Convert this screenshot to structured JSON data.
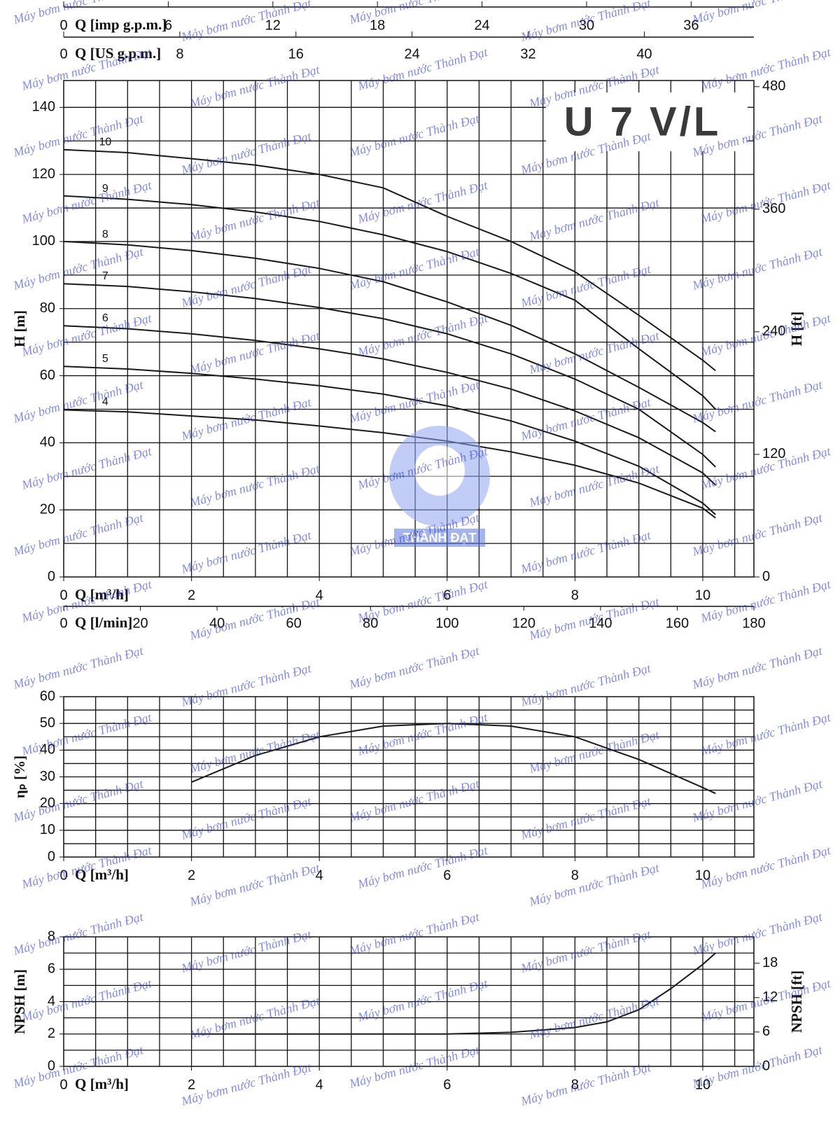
{
  "watermark": "Máy bơm nước Thành Đạt",
  "logo_text": "THÀNH ĐẠT",
  "chart_data": [
    {
      "type": "line",
      "title": "U 7 V/L",
      "xlabel": "Q [m³/h]",
      "ylabel": "H [m]",
      "y2label": "H [ft]",
      "xlim": [
        0,
        10.8
      ],
      "ylim": [
        0,
        148
      ],
      "y2lim": [
        0,
        486
      ],
      "xticks": [
        0,
        2,
        4,
        6,
        8,
        10
      ],
      "yticks": [
        0,
        20,
        40,
        60,
        80,
        100,
        120,
        140
      ],
      "y2ticks": [
        0,
        120,
        240,
        360,
        480
      ],
      "xgrid": [
        0.5,
        1,
        1.5,
        2,
        2.5,
        3,
        3.5,
        4,
        4.5,
        5,
        5.5,
        6,
        6.5,
        7,
        7.5,
        8,
        8.5,
        9,
        9.5,
        10,
        10.5
      ],
      "ygrid": [
        10,
        20,
        30,
        40,
        50,
        60,
        70,
        80,
        90,
        100,
        110,
        120,
        130,
        140
      ],
      "top_axes": [
        {
          "label": "Q [imp g.p.m.]",
          "xlim": [
            0,
            39.6
          ],
          "xticks": [
            0,
            6,
            12,
            18,
            24,
            30,
            36
          ]
        },
        {
          "label": "Q [US g.p.m.]",
          "xlim": [
            0,
            47.55
          ],
          "xticks": [
            0,
            8,
            16,
            24,
            32,
            40
          ]
        }
      ],
      "bottom_axis": {
        "label": "Q [l/min]",
        "xlim": [
          0,
          180
        ],
        "xticks": [
          0,
          20,
          40,
          60,
          80,
          100,
          120,
          140,
          160,
          180
        ]
      },
      "x": [
        0,
        1,
        2,
        3,
        4,
        5,
        6,
        7,
        8,
        9,
        10,
        10.2
      ],
      "series": [
        {
          "name": "10",
          "color": "#1a1a1a",
          "values": [
            127.4,
            126.5,
            124.7,
            122.8,
            120,
            116,
            107.5,
            100,
            91,
            78,
            64.6,
            61.5
          ]
        },
        {
          "name": "9",
          "color": "#1a1a1a",
          "values": [
            113.6,
            112.6,
            111,
            108.8,
            106,
            102,
            97,
            90.5,
            82.5,
            68,
            54,
            50
          ]
        },
        {
          "name": "8",
          "color": "#1a1a1a",
          "values": [
            100,
            99,
            97.3,
            95,
            92,
            88,
            82,
            75,
            66.5,
            56.5,
            46,
            43.3
          ]
        },
        {
          "name": "7",
          "color": "#1a1a1a",
          "values": [
            87.4,
            86.6,
            85,
            83,
            80.3,
            77,
            72.5,
            66.5,
            59,
            50,
            36.5,
            32.8
          ]
        },
        {
          "name": "6",
          "color": "#1a1a1a",
          "values": [
            74.9,
            74,
            72.5,
            70.5,
            68,
            65,
            61,
            56,
            49.5,
            41.5,
            31,
            27.4
          ]
        },
        {
          "name": "5",
          "color": "#1a1a1a",
          "values": [
            62.8,
            62,
            60.7,
            59,
            57,
            54.5,
            51,
            46.5,
            40.5,
            33,
            22,
            18.6
          ]
        },
        {
          "name": "4",
          "color": "#1a1a1a",
          "values": [
            49.8,
            49.2,
            48,
            46.8,
            45,
            43,
            40.5,
            37.3,
            33.3,
            28,
            20.5,
            17.6
          ]
        }
      ]
    },
    {
      "type": "line",
      "xlabel": "Q [m³/h]",
      "ylabel": "ηₚ [%]",
      "xlim": [
        0,
        10.8
      ],
      "ylim": [
        0,
        60
      ],
      "xticks": [
        0,
        2,
        4,
        6,
        8,
        10
      ],
      "yticks": [
        0,
        10,
        20,
        30,
        40,
        50,
        60
      ],
      "xgrid": [
        0.5,
        1,
        1.5,
        2,
        2.5,
        3,
        3.5,
        4,
        4.5,
        5,
        5.5,
        6,
        6.5,
        7,
        7.5,
        8,
        8.5,
        9,
        9.5,
        10,
        10.5
      ],
      "ygrid": [
        5,
        10,
        15,
        20,
        25,
        30,
        35,
        40,
        45,
        50,
        55
      ],
      "x": [
        2,
        3,
        4,
        5,
        6,
        7,
        8,
        9,
        10,
        10.2
      ],
      "series": [
        {
          "color": "#1a1a1a",
          "values": [
            28,
            38,
            45,
            49,
            50,
            49,
            45,
            36.5,
            26,
            23.8
          ]
        }
      ]
    },
    {
      "type": "line",
      "xlabel": "Q [m³/h]",
      "ylabel": "NPSH [m]",
      "y2label": "NPSH [ft]",
      "xlim": [
        0,
        10.8
      ],
      "ylim": [
        0,
        8
      ],
      "y2lim": [
        0,
        22.6
      ],
      "xticks": [
        0,
        2,
        4,
        6,
        8,
        10
      ],
      "yticks": [
        0,
        2,
        4,
        6,
        8
      ],
      "y2ticks": [
        0,
        6,
        12,
        18
      ],
      "xgrid": [
        0.5,
        1,
        1.5,
        2,
        2.5,
        3,
        3.5,
        4,
        4.5,
        5,
        5.5,
        6,
        6.5,
        7,
        7.5,
        8,
        8.5,
        9,
        9.5,
        10,
        10.5
      ],
      "ygrid": [
        1,
        2,
        3,
        4,
        5,
        6,
        7
      ],
      "x": [
        2,
        3,
        4,
        5,
        6,
        7,
        8,
        8.5,
        9,
        9.5,
        10,
        10.2
      ],
      "series": [
        {
          "color": "#1a1a1a",
          "values": [
            2,
            2,
            2,
            2,
            2,
            2.1,
            2.4,
            2.75,
            3.5,
            4.8,
            6.3,
            7
          ]
        }
      ]
    }
  ]
}
